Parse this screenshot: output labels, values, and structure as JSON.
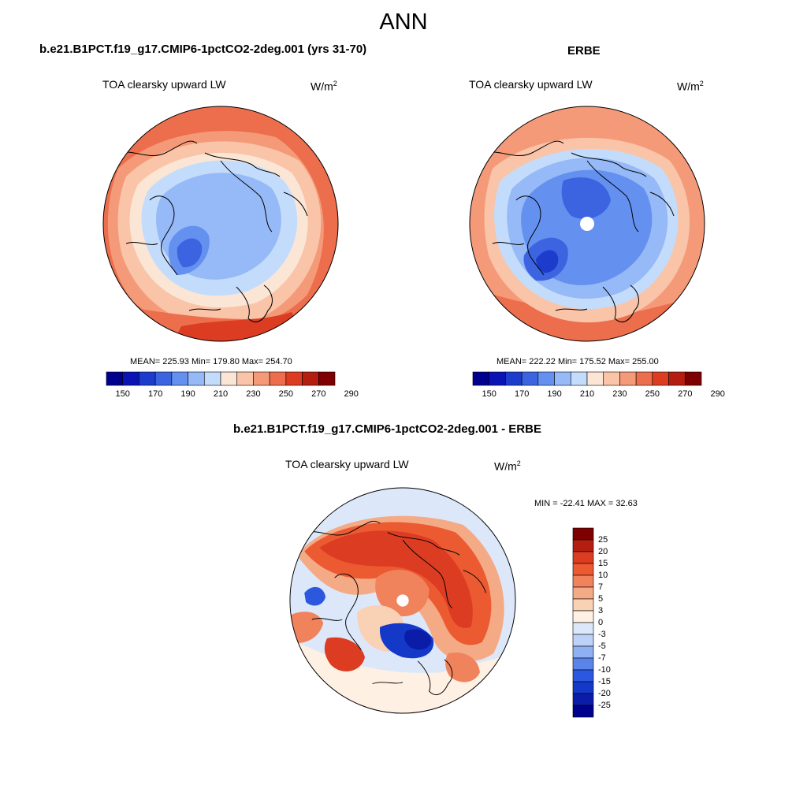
{
  "figure": {
    "title": "ANN"
  },
  "colors": {
    "abs_scale": [
      "#00008f",
      "#0a14b4",
      "#1e3ccc",
      "#3c64e0",
      "#6490f0",
      "#96b9f7",
      "#c4dcfb",
      "#fbe6d6",
      "#f9c4a8",
      "#f59a78",
      "#ec6e4c",
      "#dc3c22",
      "#b41e10",
      "#7f0000"
    ],
    "diff_scale": [
      "#7f0000",
      "#b41e10",
      "#dc3c22",
      "#ec5a32",
      "#f0825c",
      "#f5aa86",
      "#f9d2b6",
      "#fff0e4",
      "#dce8fa",
      "#bcd2f7",
      "#8fb0f2",
      "#5a84ea",
      "#2c58e0",
      "#1438c8",
      "#0a1ca8",
      "#00008c"
    ]
  },
  "panels": {
    "model": {
      "title": "b.e21.B1PCT.f19_g17.CMIP6-1pctCO2-2deg.001 (yrs 31-70)",
      "variable": "TOA clearsky upward LW",
      "units_base": "W/m",
      "units_exp": "2",
      "stats": "MEAN= 225.93  Min= 179.80  Max= 254.70"
    },
    "obs": {
      "title": "ERBE",
      "variable": "TOA clearsky upward LW",
      "units_base": "W/m",
      "units_exp": "2",
      "stats": "MEAN= 222.22  Min= 175.52  Max= 255.00"
    },
    "diff": {
      "title": "b.e21.B1PCT.f19_g17.CMIP6-1pctCO2-2deg.001 - ERBE",
      "variable": "TOA clearsky upward LW",
      "units_base": "W/m",
      "units_exp": "2",
      "stats": "MIN = -22.41 MAX =  32.63"
    }
  },
  "chart_data": [
    {
      "type": "heatmap",
      "projection": "north-polar-stereographic",
      "title": "b.e21.B1PCT.f19_g17.CMIP6-1pctCO2-2deg.001 (yrs 31-70)",
      "variable": "TOA clearsky upward LW",
      "units": "W/m2",
      "mean": 225.93,
      "min": 179.8,
      "max": 254.7,
      "colorbar_levels": [
        150,
        160,
        170,
        180,
        190,
        200,
        210,
        220,
        230,
        240,
        250,
        260,
        270,
        280,
        290
      ],
      "colorbar_tick_labels": [
        "150",
        "170",
        "190",
        "210",
        "230",
        "250",
        "270",
        "290"
      ]
    },
    {
      "type": "heatmap",
      "projection": "north-polar-stereographic",
      "title": "ERBE",
      "variable": "TOA clearsky upward LW",
      "units": "W/m2",
      "mean": 222.22,
      "min": 175.52,
      "max": 255.0,
      "colorbar_levels": [
        150,
        160,
        170,
        180,
        190,
        200,
        210,
        220,
        230,
        240,
        250,
        260,
        270,
        280,
        290
      ],
      "colorbar_tick_labels": [
        "150",
        "170",
        "190",
        "210",
        "230",
        "250",
        "270",
        "290"
      ]
    },
    {
      "type": "heatmap",
      "projection": "north-polar-stereographic",
      "title": "b.e21.B1PCT.f19_g17.CMIP6-1pctCO2-2deg.001 - ERBE",
      "variable": "TOA clearsky upward LW",
      "units": "W/m2",
      "min": -22.41,
      "max": 32.63,
      "colorbar_levels": [
        25,
        20,
        15,
        10,
        7,
        5,
        3,
        0,
        -3,
        -5,
        -7,
        -10,
        -15,
        -20,
        -25
      ],
      "colorbar_tick_labels": [
        "25",
        "20",
        "15",
        "10",
        "7",
        "5",
        "3",
        "0",
        "-3",
        "-5",
        "-7",
        "-10",
        "-15",
        "-20",
        "-25"
      ]
    }
  ]
}
